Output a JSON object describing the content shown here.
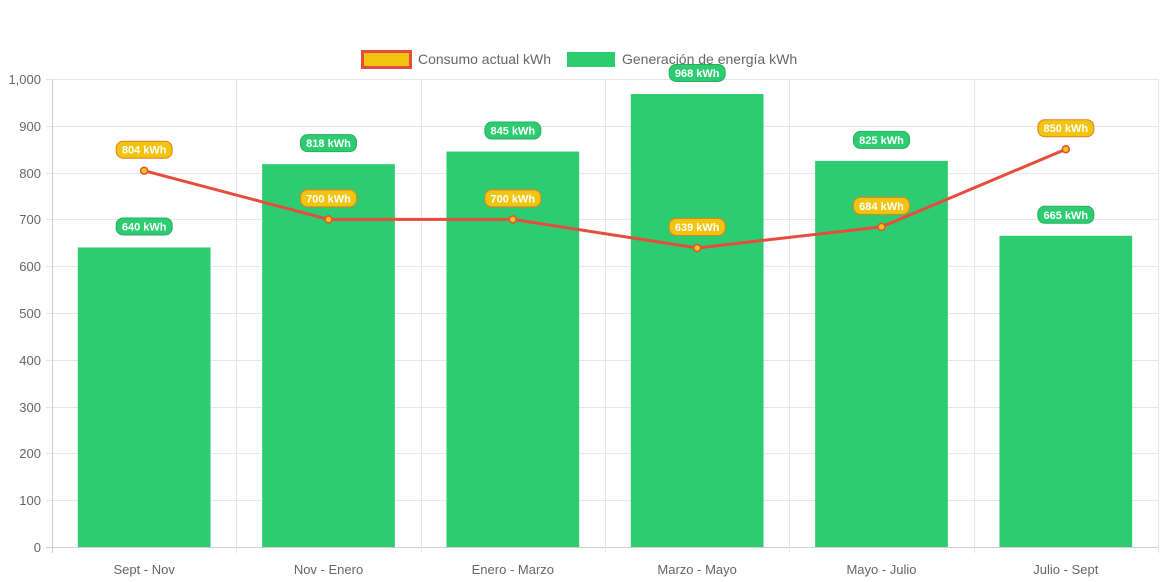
{
  "chart_data": {
    "type": "bar",
    "title": "",
    "xlabel": "",
    "ylabel": "",
    "categories": [
      "Sept - Nov",
      "Nov - Enero",
      "Enero - Marzo",
      "Marzo - Mayo",
      "Mayo - Julio",
      "Julio - Sept"
    ],
    "ylim": [
      0,
      1000
    ],
    "yticks": [
      "0",
      "100",
      "200",
      "300",
      "400",
      "500",
      "600",
      "700",
      "800",
      "900",
      "1,000"
    ],
    "grid": true,
    "legend_position": "top-center",
    "series": [
      {
        "name": "Consumo actual kWh",
        "type": "line",
        "values": [
          804,
          700,
          700,
          639,
          684,
          850
        ],
        "labels": [
          "804 kWh",
          "700 kWh",
          "700 kWh",
          "639 kWh",
          "684 kWh",
          "850 kWh"
        ],
        "line_color": "#e74c3c",
        "fill_color": "#f1c40f"
      },
      {
        "name": "Generación de energía kWh",
        "type": "bar",
        "values": [
          640,
          818,
          845,
          968,
          825,
          665
        ],
        "labels": [
          "640 kWh",
          "818 kWh",
          "845 kWh",
          "968 kWh",
          "825 kWh",
          "665 kWh"
        ],
        "color": "#2ecc71"
      }
    ]
  }
}
